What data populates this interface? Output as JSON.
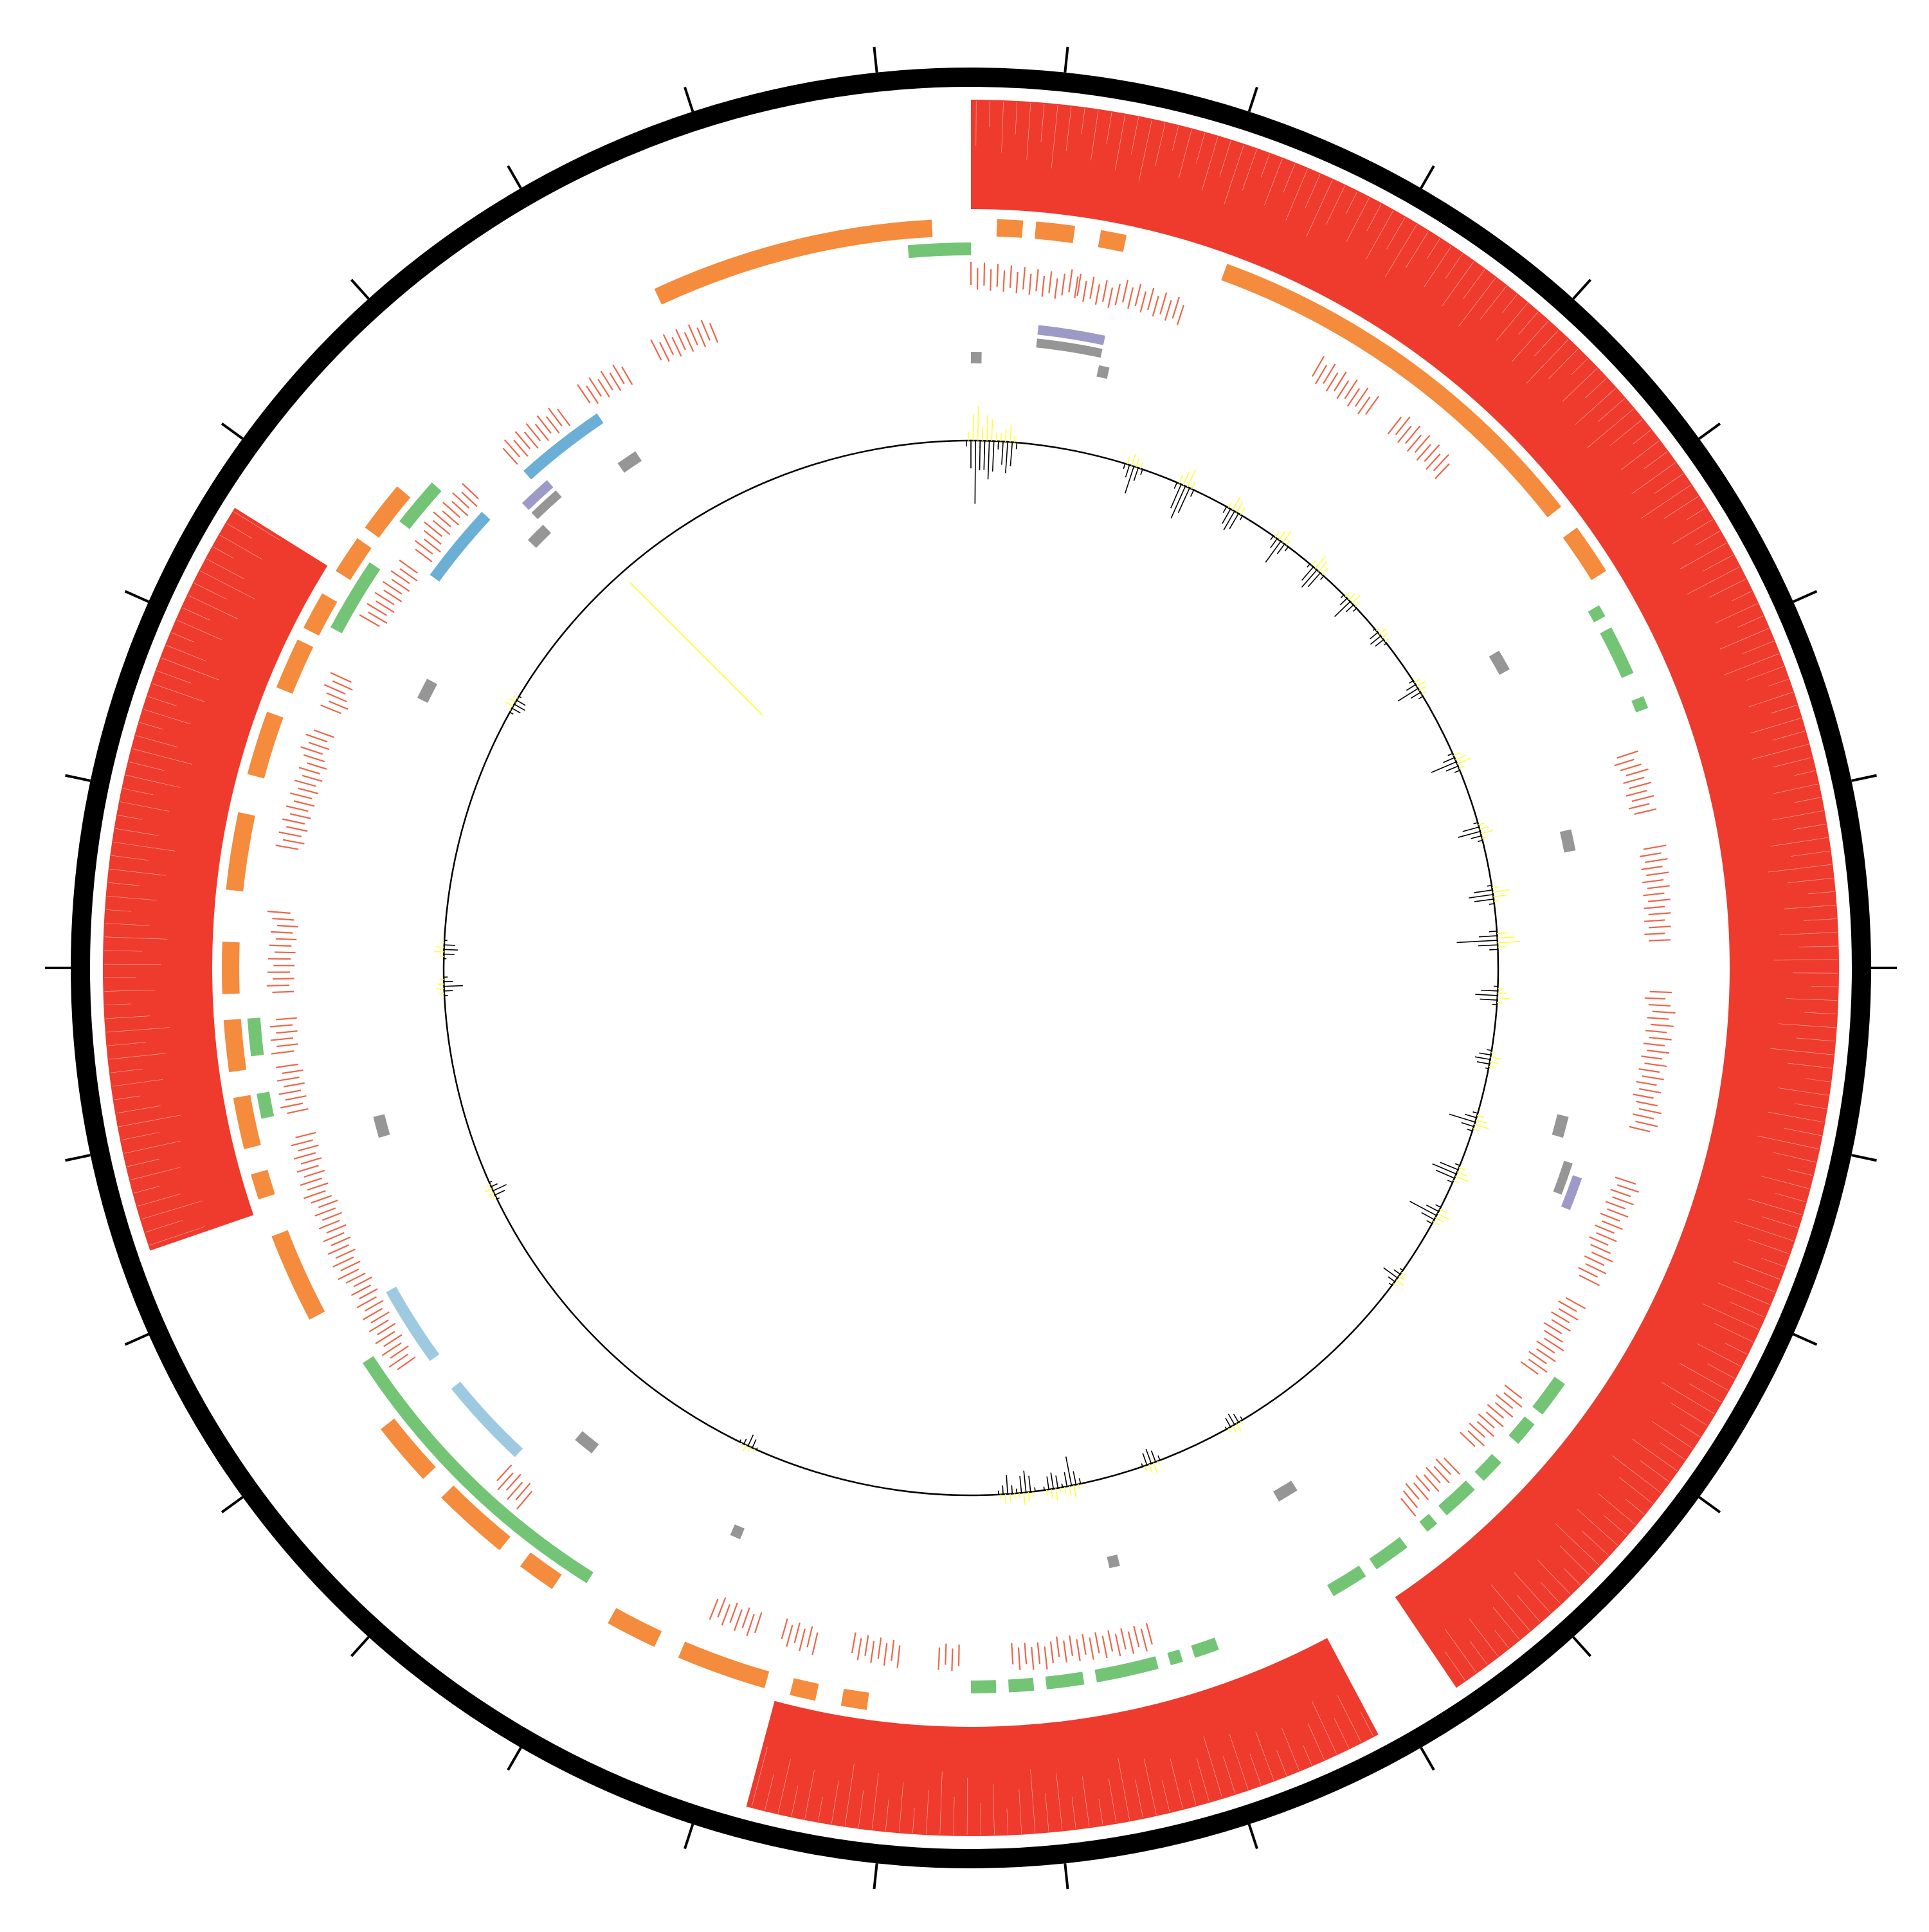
{
  "colors": {
    "background": "#ffffff",
    "ideogram": "#000000",
    "ticks": "#000000",
    "coverage": "#ee3b2e",
    "orange": "#f58b3c",
    "green": "#74c476",
    "red_marks": "#ef6548",
    "blue": "#6baed6",
    "light_blue": "#9ecae1",
    "purple": "#9e9ac8",
    "gray": "#969696",
    "histogram_positive": "#000000",
    "histogram_highlight": "#ffff33",
    "histogram_axis": "#000000"
  },
  "chart_data": {
    "type": "circular-genome-map",
    "span": [
      0,
      360
    ],
    "tick_count": 30,
    "tracks": [
      {
        "name": "",
        "kind": "coverage",
        "color_key": "coverage",
        "blocks": [
          [
            0,
            146
          ],
          [
            152,
            195
          ],
          [
            251,
            302
          ]
        ]
      },
      {
        "name": "",
        "kind": "features",
        "color_key": "orange",
        "blocks": [
          [
            2,
            4
          ],
          [
            5,
            8
          ],
          [
            10,
            12
          ],
          [
            20,
            52
          ],
          [
            54,
            58
          ],
          [
            188,
            190
          ],
          [
            192,
            194
          ],
          [
            196,
            203
          ],
          [
            205,
            209
          ],
          [
            214,
            217
          ],
          [
            219,
            225
          ],
          [
            227,
            232
          ],
          [
            242,
            249
          ],
          [
            252,
            254
          ],
          [
            256,
            260
          ],
          [
            262,
            266
          ],
          [
            268,
            272
          ],
          [
            276,
            282
          ],
          [
            285,
            290
          ],
          [
            292,
            296
          ],
          [
            297,
            300
          ],
          [
            302,
            305
          ],
          [
            306,
            310
          ],
          [
            335,
            357
          ]
        ]
      },
      {
        "name": "",
        "kind": "features",
        "color_key": "green",
        "blocks": [
          [
            60,
            61
          ],
          [
            62,
            64
          ],
          [
            64,
            66
          ],
          [
            68,
            69
          ],
          [
            125,
            128
          ],
          [
            129,
            131
          ],
          [
            133,
            135
          ],
          [
            136,
            139
          ],
          [
            140,
            141
          ],
          [
            143,
            146
          ],
          [
            147,
            150
          ],
          [
            160,
            162
          ],
          [
            163,
            164
          ],
          [
            165,
            170
          ],
          [
            171,
            174
          ],
          [
            175,
            177
          ],
          [
            178,
            180
          ],
          [
            212,
            237
          ],
          [
            258,
            260
          ],
          [
            263,
            266
          ],
          [
            298,
            304
          ],
          [
            308,
            312
          ],
          [
            355,
            360
          ]
        ]
      },
      {
        "name": "",
        "kind": "features",
        "color_key": "red_marks",
        "blocks": [
          [
            0,
            9
          ],
          [
            9,
            18
          ],
          [
            30,
            36
          ],
          [
            38,
            44
          ],
          [
            72,
            77
          ],
          [
            80,
            88
          ],
          [
            92,
            104
          ],
          [
            108,
            117
          ],
          [
            119,
            126
          ],
          [
            128,
            134
          ],
          [
            136,
            141
          ],
          [
            165,
            177
          ],
          [
            181,
            183
          ],
          [
            186,
            190
          ],
          [
            193,
            196
          ],
          [
            198,
            202
          ],
          [
            220,
            223
          ],
          [
            235,
            256
          ],
          [
            258,
            262
          ],
          [
            263,
            266
          ],
          [
            268,
            275
          ],
          [
            280,
            290
          ],
          [
            292,
            295
          ],
          [
            300,
            306
          ],
          [
            307,
            314
          ],
          [
            318,
            324
          ],
          [
            326,
            330
          ],
          [
            333,
            338
          ]
        ]
      },
      {
        "name": "",
        "kind": "features",
        "color_key": "blue",
        "blocks": [
          [
            306,
            313
          ],
          [
            318,
            326
          ]
        ]
      },
      {
        "name": "",
        "kind": "features",
        "color_key": "light_blue",
        "blocks": [
          [
            223,
            231
          ],
          [
            234,
            241
          ]
        ]
      },
      {
        "name": "",
        "kind": "features",
        "color_key": "purple",
        "blocks": [
          [
            6,
            12
          ],
          [
            109,
            112
          ],
          [
            316,
            319
          ]
        ]
      },
      {
        "name": "",
        "kind": "features",
        "color_key": "gray",
        "blocks": [
          [
            6,
            12
          ],
          [
            108,
            111
          ],
          [
            316,
            319
          ]
        ]
      },
      {
        "name": "",
        "kind": "features",
        "color_key": "gray",
        "blocks": [
          [
            0,
            1
          ],
          [
            12,
            13
          ],
          [
            59,
            61
          ],
          [
            77,
            79
          ],
          [
            104,
            106
          ],
          [
            148,
            150
          ],
          [
            166,
            167
          ],
          [
            202,
            203
          ],
          [
            218,
            220
          ],
          [
            254,
            256
          ],
          [
            296,
            298
          ],
          [
            314,
            316
          ],
          [
            325,
            327
          ]
        ]
      },
      {
        "name": "",
        "kind": "histogram",
        "color_key": "histogram_positive",
        "peaks": [
          [
            0.5,
            0.75
          ],
          [
            2,
            0.55
          ],
          [
            4,
            0.4
          ],
          [
            18,
            0.3
          ],
          [
            24,
            0.45
          ],
          [
            30,
            0.35
          ],
          [
            36,
            0.3
          ],
          [
            41,
            0.35
          ],
          [
            46,
            0.25
          ],
          [
            51,
            0.2
          ],
          [
            58,
            0.25
          ],
          [
            67,
            0.3
          ],
          [
            75,
            0.28
          ],
          [
            82,
            0.35
          ],
          [
            87,
            0.45
          ],
          [
            93,
            0.3
          ],
          [
            100,
            0.25
          ],
          [
            107,
            0.3
          ],
          [
            113,
            0.35
          ],
          [
            118,
            0.32
          ],
          [
            126,
            0.2
          ],
          [
            150,
            0.2
          ],
          [
            160,
            0.25
          ],
          [
            169,
            0.3
          ],
          [
            171,
            0.25
          ],
          [
            174,
            0.28
          ],
          [
            176,
            0.22
          ],
          [
            205,
            0.15
          ],
          [
            245,
            0.18
          ],
          [
            268,
            0.2
          ],
          [
            272,
            0.2
          ],
          [
            300,
            0.2
          ]
        ]
      }
    ]
  }
}
